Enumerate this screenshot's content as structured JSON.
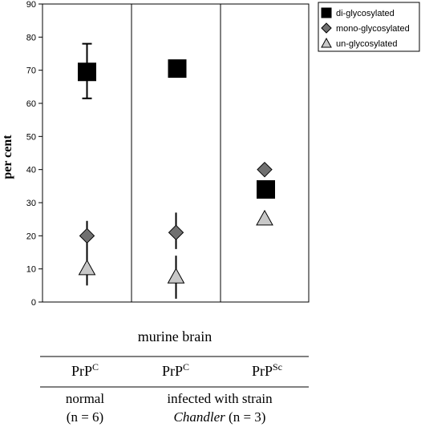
{
  "chart_data": {
    "type": "scatter",
    "ylabel": "per cent",
    "ylim": [
      0,
      90
    ],
    "yticks": [
      "0",
      "10",
      "20",
      "30",
      "40",
      "50",
      "60",
      "70",
      "80",
      "90"
    ],
    "categories": [
      "PrP^C normal",
      "PrP^C infected",
      "PrP^Sc infected"
    ],
    "series": [
      {
        "name": "di-glycosylated",
        "marker": "square",
        "color": "#000000",
        "values": [
          69.5,
          70.5,
          34
        ],
        "error": [
          [
            61.5,
            78
          ],
          null,
          null
        ]
      },
      {
        "name": "mono-glycosylated",
        "marker": "diamond",
        "color": "#707070",
        "values": [
          20,
          21,
          40
        ],
        "error": [
          [
            15,
            24.5
          ],
          [
            16,
            27
          ],
          null
        ]
      },
      {
        "name": "un-glycosylated",
        "marker": "triangle",
        "color": "#c8c8c8",
        "values": [
          10,
          7.5,
          25
        ],
        "error": [
          [
            5,
            15
          ],
          [
            1,
            14
          ],
          null
        ]
      }
    ],
    "grid": false,
    "legend_position": "top-right"
  },
  "footer": {
    "tissue": "murine brain",
    "col1": {
      "main": "PrP",
      "sup": "C"
    },
    "col2": {
      "main": "PrP",
      "sup": "C"
    },
    "col3": {
      "main": "PrP",
      "sup": "Sc"
    },
    "group1_line1": "normal",
    "group1_line2": "(n = 6)",
    "group2_line1": "infected with strain",
    "group2_italic": "Chandler",
    "group2_rest": " (n = 3)"
  }
}
